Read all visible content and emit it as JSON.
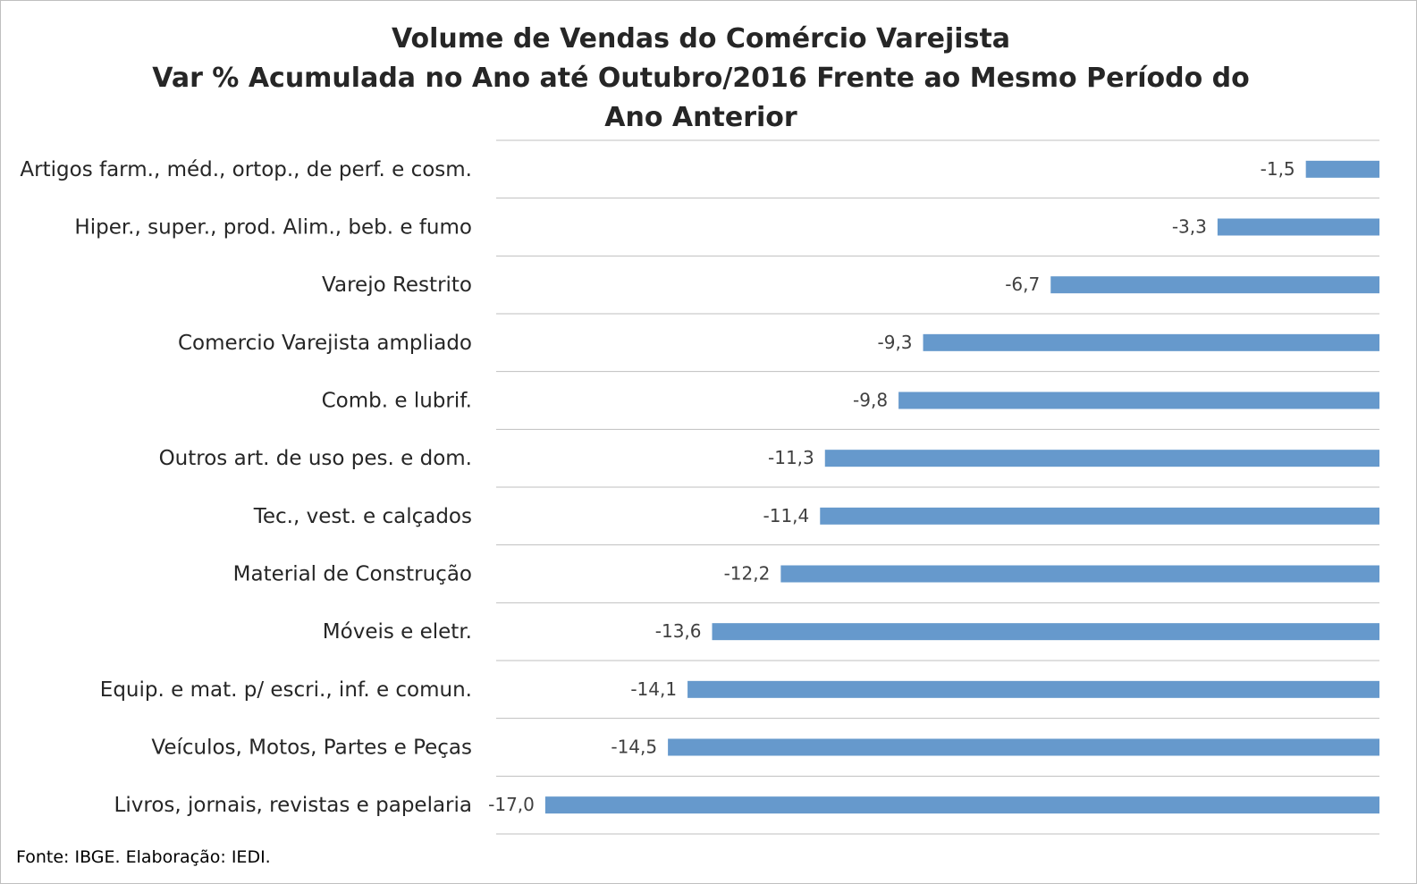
{
  "chart_data": {
    "type": "bar",
    "orientation": "horizontal",
    "title": "Volume de Vendas do Comércio Varejista",
    "subtitle": "Var % Acumulada no Ano até Outubro/2016 Frente ao Mesmo Período do Ano Anterior",
    "source": "Fonte: IBGE. Elaboração: IEDI.",
    "categories": [
      "Artigos farm., méd., ortop., de perf. e cosm.",
      "Hiper., super., prod. Alim., beb. e fumo",
      "Varejo Restrito",
      "Comercio Varejista ampliado",
      "Comb. e lubrif.",
      "Outros art. de uso pes. e dom.",
      "Tec., vest. e calçados",
      "Material de Construção",
      "Móveis e eletr.",
      "Equip. e mat. p/ escri., inf. e comun.",
      "Veículos, Motos, Partes e Peças",
      "Livros, jornais, revistas e papelaria"
    ],
    "values": [
      -1.5,
      -3.3,
      -6.7,
      -9.3,
      -9.8,
      -11.3,
      -11.4,
      -12.2,
      -13.6,
      -14.1,
      -14.5,
      -17.0
    ],
    "value_labels": [
      "-1,5",
      "-3,3",
      "-6,7",
      "-9,3",
      "-9,8",
      "-11,3",
      "-11,4",
      "-12,2",
      "-13,6",
      "-14,1",
      "-14,5",
      "-17,0"
    ],
    "color": "#6699cc",
    "xlim": [
      -18,
      0
    ]
  }
}
